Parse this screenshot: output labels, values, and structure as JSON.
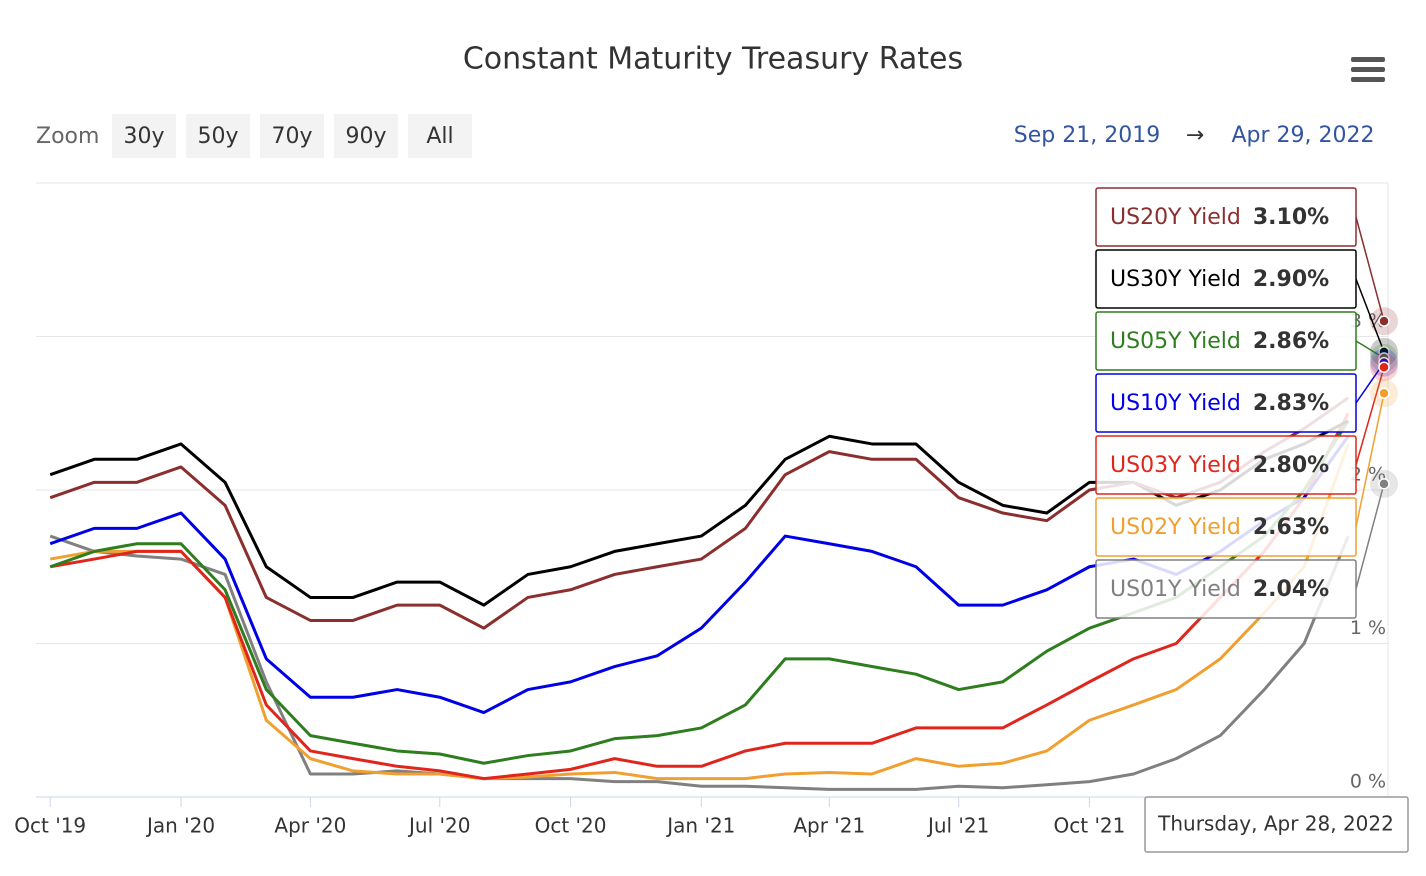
{
  "chart_data": {
    "type": "line",
    "title": "Constant Maturity Treasury Rates",
    "range_selector": {
      "label": "Zoom",
      "buttons": [
        "30y",
        "50y",
        "70y",
        "90y",
        "All"
      ],
      "from": "Sep 21, 2019",
      "arrow": "→",
      "to": "Apr 29, 2022"
    },
    "x": [
      "2019-10",
      "2019-11",
      "2019-12",
      "2020-01",
      "2020-02",
      "2020-03",
      "2020-04",
      "2020-05",
      "2020-06",
      "2020-07",
      "2020-08",
      "2020-09",
      "2020-10",
      "2020-11",
      "2020-12",
      "2021-01",
      "2021-02",
      "2021-03",
      "2021-04",
      "2021-05",
      "2021-06",
      "2021-07",
      "2021-08",
      "2021-09",
      "2021-10",
      "2021-11",
      "2021-12",
      "2022-01",
      "2022-02",
      "2022-03",
      "2022-04"
    ],
    "xticks": [
      {
        "value": "2019-10",
        "label": "Oct '19"
      },
      {
        "value": "2020-01",
        "label": "Jan '20"
      },
      {
        "value": "2020-04",
        "label": "Apr '20"
      },
      {
        "value": "2020-07",
        "label": "Jul '20"
      },
      {
        "value": "2020-10",
        "label": "Oct '20"
      },
      {
        "value": "2021-01",
        "label": "Jan '21"
      },
      {
        "value": "2021-04",
        "label": "Apr '21"
      },
      {
        "value": "2021-07",
        "label": "Jul '21"
      },
      {
        "value": "2021-10",
        "label": "Oct '21"
      }
    ],
    "ylim": [
      0,
      4
    ],
    "yticks": [
      {
        "value": 0,
        "label": "0 %"
      },
      {
        "value": 1,
        "label": "1 %"
      },
      {
        "value": 2,
        "label": "2 %"
      },
      {
        "value": 3,
        "label": "3 %"
      }
    ],
    "grid": true,
    "tooltip_date": "Thursday, Apr 28, 2022",
    "series": [
      {
        "name": "US20Y Yield",
        "color": "#8b2e2e",
        "tooltip_value": 3.1,
        "tooltip_label": "3.10%",
        "values": [
          1.95,
          2.05,
          2.05,
          2.15,
          1.9,
          1.3,
          1.15,
          1.15,
          1.25,
          1.25,
          1.1,
          1.3,
          1.35,
          1.45,
          1.5,
          1.55,
          1.75,
          2.1,
          2.25,
          2.2,
          2.2,
          1.95,
          1.85,
          1.8,
          2.0,
          2.05,
          1.95,
          2.05,
          2.25,
          2.4,
          2.6
        ]
      },
      {
        "name": "US30Y Yield",
        "color": "#000000",
        "tooltip_value": 2.9,
        "tooltip_label": "2.90%",
        "values": [
          2.1,
          2.2,
          2.2,
          2.3,
          2.05,
          1.5,
          1.3,
          1.3,
          1.4,
          1.4,
          1.25,
          1.45,
          1.5,
          1.6,
          1.65,
          1.7,
          1.9,
          2.2,
          2.35,
          2.3,
          2.3,
          2.05,
          1.9,
          1.85,
          2.05,
          2.05,
          1.9,
          2.0,
          2.2,
          2.3,
          2.45
        ]
      },
      {
        "name": "US05Y Yield",
        "color": "#2e7d1e",
        "tooltip_value": 2.86,
        "tooltip_label": "2.86%",
        "values": [
          1.5,
          1.6,
          1.65,
          1.65,
          1.35,
          0.7,
          0.4,
          0.35,
          0.3,
          0.28,
          0.22,
          0.27,
          0.3,
          0.38,
          0.4,
          0.45,
          0.6,
          0.9,
          0.9,
          0.85,
          0.8,
          0.7,
          0.75,
          0.95,
          1.1,
          1.2,
          1.3,
          1.5,
          1.7,
          2.0,
          2.45
        ]
      },
      {
        "name": "US10Y Yield",
        "color": "#0000e6",
        "tooltip_value": 2.83,
        "tooltip_label": "2.83%",
        "values": [
          1.65,
          1.75,
          1.75,
          1.85,
          1.55,
          0.9,
          0.65,
          0.65,
          0.7,
          0.65,
          0.55,
          0.7,
          0.75,
          0.85,
          0.92,
          1.1,
          1.4,
          1.7,
          1.65,
          1.6,
          1.5,
          1.25,
          1.25,
          1.35,
          1.5,
          1.55,
          1.45,
          1.6,
          1.8,
          1.95,
          2.35
        ]
      },
      {
        "name": "US03Y Yield",
        "color": "#e0261c",
        "tooltip_value": 2.8,
        "tooltip_label": "2.80%",
        "values": [
          1.5,
          1.55,
          1.6,
          1.6,
          1.3,
          0.6,
          0.3,
          0.25,
          0.2,
          0.17,
          0.12,
          0.15,
          0.18,
          0.25,
          0.2,
          0.2,
          0.3,
          0.35,
          0.35,
          0.35,
          0.45,
          0.45,
          0.45,
          0.6,
          0.75,
          0.9,
          1.0,
          1.3,
          1.6,
          1.95,
          2.5
        ]
      },
      {
        "name": "US02Y Yield",
        "color": "#f0a030",
        "tooltip_value": 2.63,
        "tooltip_label": "2.63%",
        "values": [
          1.55,
          1.6,
          1.6,
          1.6,
          1.3,
          0.5,
          0.25,
          0.17,
          0.15,
          0.15,
          0.12,
          0.13,
          0.15,
          0.16,
          0.12,
          0.12,
          0.12,
          0.15,
          0.16,
          0.15,
          0.25,
          0.2,
          0.22,
          0.3,
          0.5,
          0.6,
          0.7,
          0.9,
          1.2,
          1.5,
          2.3
        ]
      },
      {
        "name": "US01Y Yield",
        "color": "#808080",
        "tooltip_value": 2.04,
        "tooltip_label": "2.04%",
        "values": [
          1.7,
          1.6,
          1.57,
          1.55,
          1.45,
          0.75,
          0.15,
          0.15,
          0.17,
          0.15,
          0.12,
          0.12,
          0.12,
          0.1,
          0.1,
          0.07,
          0.07,
          0.06,
          0.05,
          0.05,
          0.05,
          0.07,
          0.06,
          0.08,
          0.1,
          0.15,
          0.25,
          0.4,
          0.7,
          1.0,
          1.7
        ]
      }
    ]
  }
}
